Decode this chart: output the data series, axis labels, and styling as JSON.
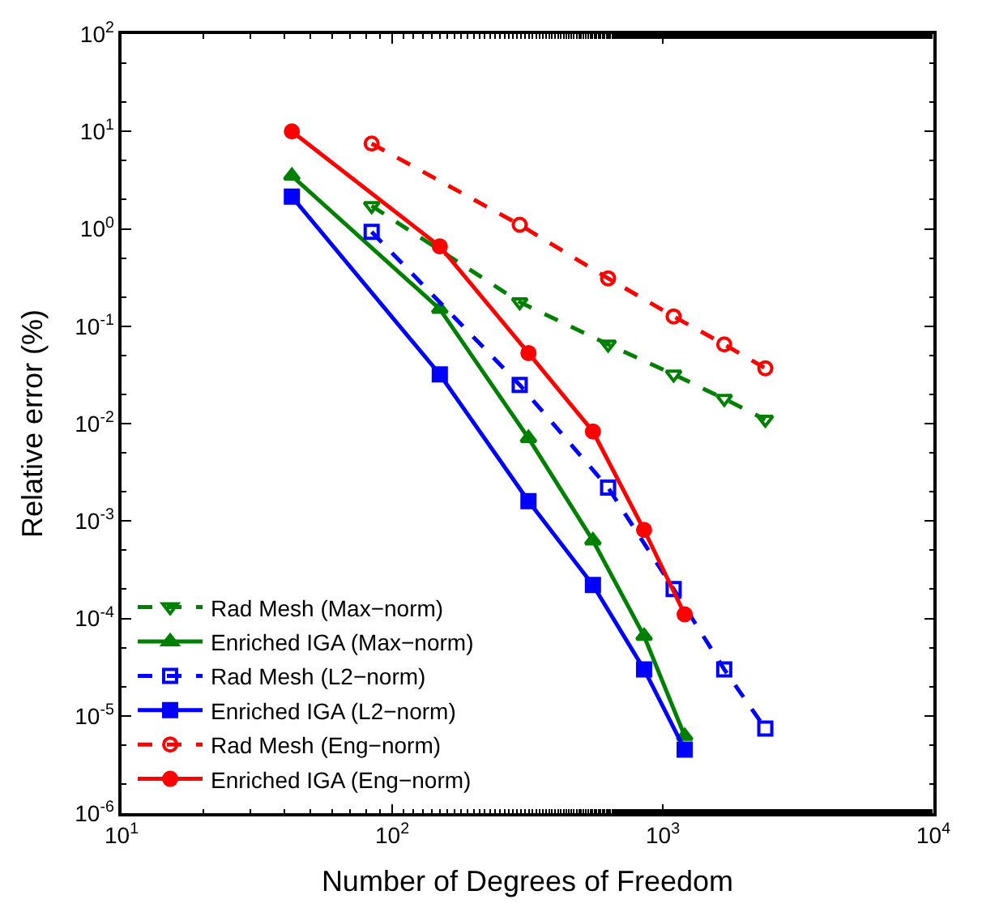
{
  "chart_data": {
    "type": "line",
    "xlabel": "Number of Degrees of Freedom",
    "ylabel": "Relative error (%)",
    "log": "xy",
    "legend": "bottom left",
    "xlim": [
      10,
      10000
    ],
    "ylim": [
      1e-06,
      100
    ],
    "xticks": [
      {
        "value": 10,
        "label": "10$^{1}$"
      },
      {
        "value": 100,
        "label": "10$^{2}$"
      },
      {
        "value": 1000,
        "label": "10$^{3}$"
      },
      {
        "value": 10000,
        "label": "10$^{4}$"
      }
    ],
    "yticks": [
      {
        "value": 1e-06,
        "label": "10$^{-6}$"
      },
      {
        "value": 1e-05,
        "label": "10$^{-5}$"
      },
      {
        "value": 0.0001,
        "label": "10$^{-4}$"
      },
      {
        "value": 0.001,
        "label": "10$^{-3}$"
      },
      {
        "value": 0.01,
        "label": "10$^{-2}$"
      },
      {
        "value": 0.1,
        "label": "10$^{-1}$"
      },
      {
        "value": 1,
        "label": "10$^{0}$"
      },
      {
        "value": 10,
        "label": "10$^{1}$"
      },
      {
        "value": 100,
        "label": "10$^{2}$"
      }
    ],
    "series": [
      {
        "name": "Rad Mesh (Max−norm)",
        "color": "#008000",
        "line_style": "dashed",
        "marker": "triangle-down",
        "x": [
          84,
          296,
          628,
          1097,
          1687,
          2393
        ],
        "values": [
          1.72,
          0.177,
          0.065,
          0.032,
          0.018,
          0.011
        ]
      },
      {
        "name": "Enriched IGA (Max−norm)",
        "color": "#008000",
        "line_style": "solid",
        "marker": "triangle",
        "x": [
          42.6,
          150,
          319,
          552,
          853,
          1205
        ],
        "values": [
          3.5,
          0.15,
          0.0071,
          0.00063,
          6.6e-05,
          6.2e-06
        ]
      },
      {
        "name": "Rad Mesh (L2−norm)",
        "color": "#0000ff",
        "line_style": "dashed",
        "marker": "square",
        "x": [
          84,
          296,
          628,
          1097,
          1687,
          2393
        ],
        "values": [
          0.93,
          0.025,
          0.0022,
          0.0002,
          3e-05,
          7.4e-06
        ]
      },
      {
        "name": "Enriched IGA (L2−norm)",
        "color": "#0000ff",
        "line_style": "solid",
        "marker": "square",
        "x": [
          42.6,
          150,
          319,
          552,
          853,
          1205
        ],
        "values": [
          2.14,
          0.032,
          0.0016,
          0.00022,
          3e-05,
          4.5e-06
        ]
      },
      {
        "name": "Rad Mesh (Eng−norm)",
        "color": "#ff0000",
        "line_style": "dashed",
        "marker": "circle",
        "x": [
          84,
          296,
          628,
          1097,
          1687,
          2393
        ],
        "values": [
          7.5,
          1.1,
          0.31,
          0.126,
          0.065,
          0.037
        ]
      },
      {
        "name": "Enriched IGA (Eng−norm)",
        "color": "#ff0000",
        "line_style": "solid",
        "marker": "circle",
        "x": [
          42.6,
          150,
          319,
          552,
          853,
          1205
        ],
        "values": [
          10,
          0.66,
          0.053,
          0.0083,
          0.00081,
          0.00011
        ]
      }
    ]
  }
}
